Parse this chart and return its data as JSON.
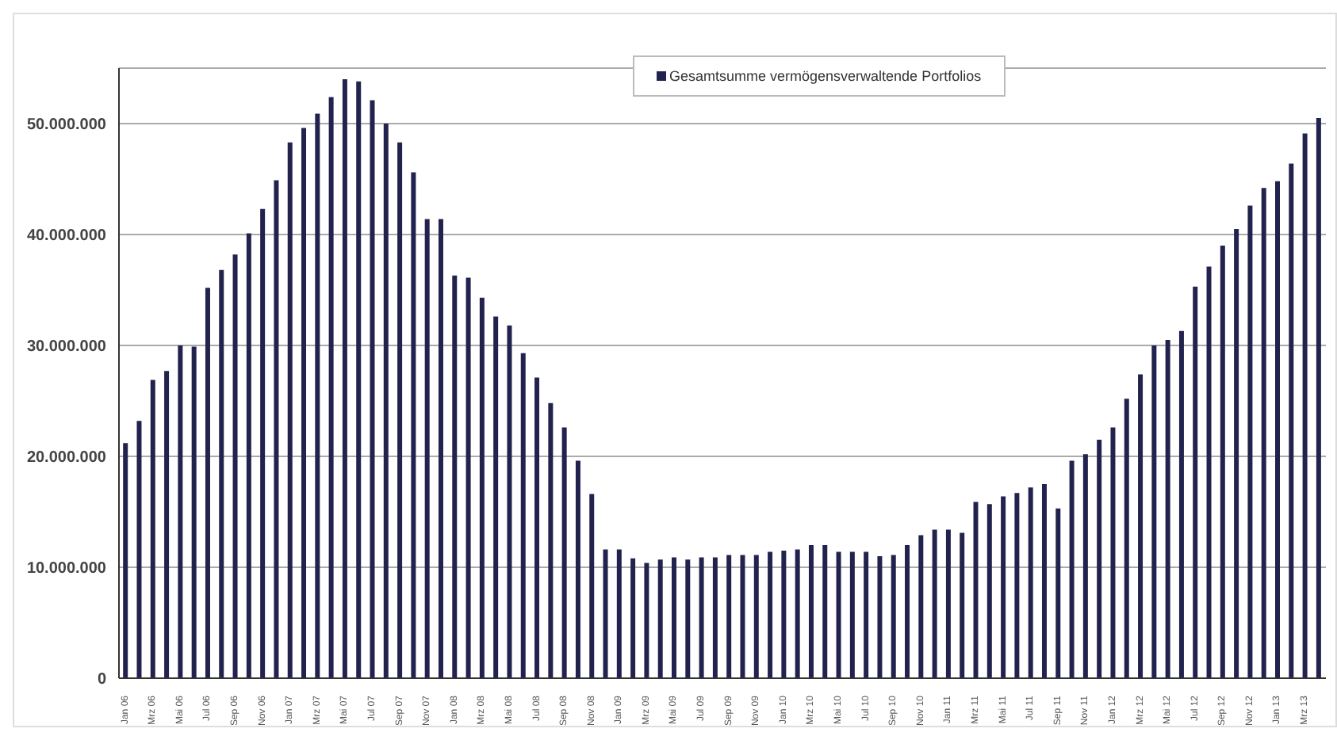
{
  "chart_data": {
    "type": "bar",
    "categories": [
      "Jan 06",
      null,
      "Mrz 06",
      null,
      "Mai 06",
      null,
      "Jul 06",
      null,
      "Sep 06",
      null,
      "Nov 06",
      null,
      "Jan 07",
      null,
      "Mrz 07",
      null,
      "Mai 07",
      null,
      "Jul 07",
      null,
      "Sep 07",
      null,
      "Nov 07",
      null,
      "Jan 08",
      null,
      "Mrz 08",
      null,
      "Mai 08",
      null,
      "Jul 08",
      null,
      "Sep 08",
      null,
      "Nov 08",
      null,
      "Jan 09",
      null,
      "Mrz 09",
      null,
      "Mai 09",
      null,
      "Jul 09",
      null,
      "Sep 09",
      null,
      "Nov 09",
      null,
      "Jan 10",
      null,
      "Mrz 10",
      null,
      "Mai 10",
      null,
      "Jul 10",
      null,
      "Sep 10",
      null,
      "Nov 10",
      null,
      "Jan 11",
      null,
      "Mrz 11",
      null,
      "Mai 11",
      null,
      "Jul 11",
      null,
      "Sep 11",
      null,
      "Nov 11",
      null,
      "Jan 12",
      null,
      "Mrz 12",
      null,
      "Mai 12",
      null,
      "Jul 12",
      null,
      "Sep 12",
      null,
      "Nov 12",
      null,
      "Jan 13",
      null,
      "Mrz 13",
      null
    ],
    "series": [
      {
        "name": "Gesamtsumme vermögensverwaltende Portfolios",
        "color": "#22224e",
        "values": [
          21200000,
          23200000,
          26900000,
          27700000,
          30000000,
          29900000,
          35200000,
          36800000,
          38200000,
          40100000,
          42300000,
          44900000,
          48300000,
          49600000,
          50900000,
          52400000,
          54000000,
          53800000,
          52100000,
          50000000,
          48300000,
          45600000,
          41400000,
          41400000,
          36300000,
          36100000,
          34300000,
          32600000,
          31800000,
          29300000,
          27100000,
          24800000,
          22600000,
          19600000,
          16600000,
          11600000,
          11600000,
          10800000,
          10400000,
          10700000,
          10900000,
          10700000,
          10900000,
          10900000,
          11100000,
          11100000,
          11100000,
          11400000,
          11500000,
          11600000,
          12000000,
          12000000,
          11400000,
          11400000,
          11400000,
          11000000,
          11100000,
          12000000,
          12900000,
          13400000,
          13400000,
          13100000,
          15900000,
          15700000,
          16400000,
          16700000,
          17200000,
          17500000,
          15300000,
          19600000,
          20200000,
          21500000,
          22600000,
          25200000,
          27400000,
          30000000,
          30500000,
          31300000,
          35300000,
          37100000,
          39000000,
          40500000,
          42600000,
          44200000,
          44800000,
          46400000,
          49100000,
          50500000
        ]
      }
    ],
    "ylim": [
      0,
      55000000
    ],
    "yticks": [
      0,
      {
        "value": 10000000,
        "label": "10.000.000"
      },
      {
        "value": 20000000,
        "label": "20.000.000"
      },
      {
        "value": 30000000,
        "label": "30.000.000"
      },
      {
        "value": 40000000,
        "label": "40.000.000"
      },
      {
        "value": 50000000,
        "label": "50.000.000"
      }
    ],
    "grid": "y",
    "legend": "top"
  }
}
